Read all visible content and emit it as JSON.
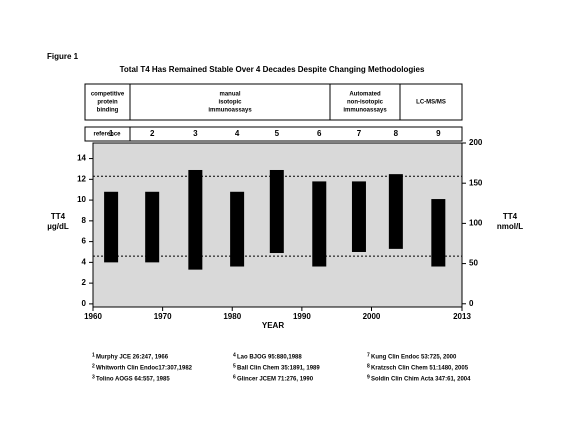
{
  "figure_label": "Figure 1",
  "chart_data": {
    "type": "floating-bar",
    "title": "Total T4 Has Remained Stable Over 4 Decades Despite Changing Methodologies",
    "methods": [
      {
        "lines": [
          "competitive",
          "protein",
          "binding"
        ]
      },
      {
        "lines": [
          "manual",
          "isotopic",
          "immunoassays"
        ]
      },
      {
        "lines": [
          "Automated",
          "non-isotopic",
          "immunoassays"
        ]
      },
      {
        "lines": [
          "LC-MS/MS"
        ]
      }
    ],
    "reference_label": "reference",
    "references": [
      "1",
      "2",
      "3",
      "4",
      "5",
      "6",
      "7",
      "8",
      "9"
    ],
    "x": [
      1962.6,
      1968.5,
      1974.7,
      1980.7,
      1986.4,
      1992.5,
      1998.2,
      2003.5,
      2009.6
    ],
    "low": [
      4.0,
      4.0,
      3.3,
      3.6,
      4.9,
      3.6,
      5.0,
      5.3,
      3.6
    ],
    "high": [
      10.8,
      10.8,
      12.9,
      10.8,
      12.9,
      11.8,
      11.8,
      12.5,
      10.1
    ],
    "color": "#000000",
    "plot_background": "#d9d9d9",
    "reference_lines": [
      12.3,
      4.6
    ],
    "xlim": [
      1960,
      2013
    ],
    "xticks": [
      1960,
      1970,
      1980,
      1990,
      2000,
      2013
    ],
    "ylim": [
      -0.3,
      15.5
    ],
    "yticks": [
      0,
      2,
      4,
      6,
      8,
      10,
      12,
      14
    ],
    "y2lim": [
      -4,
      200
    ],
    "y2ticks": [
      0,
      50,
      100,
      150,
      200
    ],
    "ylabel": [
      "TT4",
      "µg/dL"
    ],
    "y2label": [
      "TT4",
      "nmol/L"
    ],
    "xlabel": "YEAR"
  },
  "footnotes": [
    {
      "num": "1",
      "text": "Murphy JCE 26:247, 1966"
    },
    {
      "num": "2",
      "text": "Whitworth Clin Endoc17:307,1982"
    },
    {
      "num": "3",
      "text": "Tolino AOGS 64:557, 1985"
    },
    {
      "num": "4",
      "text": "Lao BJOG 95:880,1988"
    },
    {
      "num": "5",
      "text": "Ball Clin Chem 35:1891, 1989"
    },
    {
      "num": "6",
      "text": "Glincer JCEM 71:276, 1990"
    },
    {
      "num": "7",
      "text": "Kung Clin Endoc 53:725, 2000"
    },
    {
      "num": "8",
      "text": "Kratzsch Clin Chem 51:1480, 2005"
    },
    {
      "num": "9",
      "text": "Soldin Clin Chim Acta 347:61, 2004"
    }
  ]
}
